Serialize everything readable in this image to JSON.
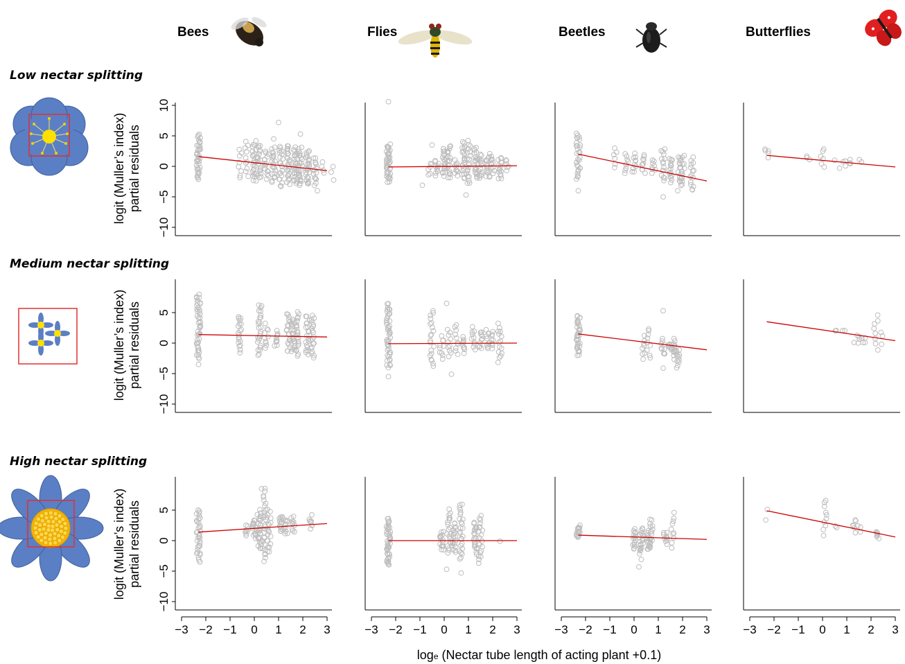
{
  "figure": {
    "columns": [
      {
        "label": "Bees",
        "icon": "bee-icon"
      },
      {
        "label": "Flies",
        "icon": "fly-icon"
      },
      {
        "label": "Beetles",
        "icon": "beetle-icon"
      },
      {
        "label": "Butterflies",
        "icon": "butterfly-icon"
      }
    ],
    "rows": [
      {
        "label": "Low nectar splitting",
        "icon": "low-splitting-flower-icon"
      },
      {
        "label": "Medium nectar splitting",
        "icon": "medium-splitting-flower-icon"
      },
      {
        "label": "High nectar splitting",
        "icon": "high-splitting-flower-icon"
      }
    ],
    "ylabel_line1": "logit (Muller’s index)",
    "ylabel_line2": "partial residuals",
    "xlabel_prefix": "log",
    "xlabel_sub": "e",
    "xlabel_rest": " (Nectar tube length of acting plant +0.1)",
    "x_tick_labels": [
      "−3",
      "−2",
      "−1",
      "0",
      "1",
      "2",
      "3"
    ],
    "y_tick_labels": [
      "−10",
      "−5",
      "0",
      "5",
      "10"
    ],
    "colors": {
      "points": "#bdbdbd",
      "fit_line": "#cc0000",
      "flower_petal": "#5b7fc4",
      "flower_center": "#ffe000",
      "box": "#e03030"
    }
  },
  "chart_data": {
    "type": "scatter",
    "xlim": [
      -3,
      3
    ],
    "ylim": [
      -10,
      10
    ],
    "x_ticks": [
      -3,
      -2,
      -1,
      0,
      1,
      2,
      3
    ],
    "y_ticks": [
      -10,
      -5,
      0,
      5,
      10
    ],
    "grid": false,
    "panels": [
      {
        "row": "Low nectar splitting",
        "col": "Bees",
        "fit": [
          [
            -2.3,
            1.6
          ],
          [
            3.0,
            -0.7
          ]
        ],
        "clusters": [
          [
            -2.3,
            -2,
            5,
            40
          ],
          [
            -0.6,
            -2,
            3,
            8
          ],
          [
            -0.3,
            -1.5,
            4,
            10
          ],
          [
            0,
            -2.5,
            4,
            25
          ],
          [
            0.2,
            -2,
            3.5,
            20
          ],
          [
            0.5,
            -2,
            2.5,
            15
          ],
          [
            0.8,
            -2.5,
            3,
            20
          ],
          [
            1.1,
            -3,
            3.5,
            20
          ],
          [
            1.4,
            -3,
            3.5,
            25
          ],
          [
            1.7,
            -3,
            3,
            25
          ],
          [
            1.9,
            -3,
            3,
            25
          ],
          [
            2.2,
            -3,
            2.5,
            25
          ],
          [
            2.5,
            -3,
            1.5,
            15
          ],
          [
            2.8,
            -1,
            0.5,
            4
          ],
          [
            3.2,
            -2,
            0,
            3
          ]
        ],
        "outliers": [
          [
            1.0,
            7.2
          ],
          [
            1.9,
            5.3
          ],
          [
            0.8,
            4.5
          ],
          [
            2.6,
            -4
          ],
          [
            1.1,
            -3.3
          ]
        ]
      },
      {
        "row": "Low nectar splitting",
        "col": "Flies",
        "fit": [
          [
            -2.3,
            -0.1
          ],
          [
            3.0,
            0.1
          ]
        ],
        "clusters": [
          [
            -2.3,
            -2.5,
            3.5,
            40
          ],
          [
            -0.6,
            -1.5,
            0.5,
            6
          ],
          [
            -0.3,
            -1.5,
            1,
            10
          ],
          [
            0,
            -1.5,
            3,
            20
          ],
          [
            0.2,
            -2,
            3.5,
            20
          ],
          [
            0.5,
            -1.5,
            1,
            10
          ],
          [
            0.8,
            -2,
            4,
            20
          ],
          [
            1.0,
            -3,
            4,
            20
          ],
          [
            1.3,
            -2,
            3,
            20
          ],
          [
            1.5,
            -2,
            2,
            15
          ],
          [
            1.8,
            -2,
            2,
            15
          ],
          [
            2.0,
            -1,
            1.5,
            10
          ],
          [
            2.3,
            -2,
            1.5,
            15
          ],
          [
            2.6,
            -0.5,
            1,
            6
          ]
        ],
        "outliers": [
          [
            -2.3,
            10.6
          ],
          [
            -0.9,
            -3.1
          ],
          [
            0.9,
            -4.7
          ],
          [
            -0.5,
            3.5
          ]
        ]
      },
      {
        "row": "Low nectar splitting",
        "col": "Beetles",
        "fit": [
          [
            -2.3,
            2.0
          ],
          [
            3.0,
            -2.4
          ]
        ],
        "clusters": [
          [
            -2.3,
            -2,
            5.5,
            30
          ],
          [
            -0.8,
            0,
            3,
            6
          ],
          [
            -0.3,
            -1,
            2,
            8
          ],
          [
            0,
            -1,
            2,
            10
          ],
          [
            0.4,
            -1,
            2,
            10
          ],
          [
            0.8,
            -1,
            1,
            8
          ],
          [
            1.2,
            -2.5,
            3,
            15
          ],
          [
            1.5,
            -2.5,
            1.5,
            15
          ],
          [
            1.9,
            -3,
            1.5,
            15
          ],
          [
            2.0,
            -3,
            2,
            12
          ],
          [
            2.4,
            -4,
            1.5,
            15
          ]
        ],
        "outliers": [
          [
            -2.3,
            -4
          ],
          [
            1.2,
            -5
          ],
          [
            1.8,
            -4
          ]
        ]
      },
      {
        "row": "Low nectar splitting",
        "col": "Butterflies",
        "fit": [
          [
            -2.3,
            1.8
          ],
          [
            3.0,
            -0.1
          ]
        ],
        "clusters": [
          [
            -2.3,
            1.5,
            3,
            5
          ],
          [
            -0.6,
            1,
            1.7,
            3
          ],
          [
            0,
            0,
            3,
            6
          ],
          [
            0.9,
            0,
            1,
            3
          ],
          [
            1.2,
            0.3,
            1.3,
            3
          ],
          [
            1.6,
            0.5,
            1,
            2
          ]
        ],
        "outliers": [
          [
            0.7,
            -0.3
          ],
          [
            0.5,
            1.0
          ]
        ]
      },
      {
        "row": "Medium nectar splitting",
        "col": "Bees",
        "fit": [
          [
            -2.3,
            1.4
          ],
          [
            3.0,
            1.0
          ]
        ],
        "clusters": [
          [
            -2.3,
            -2.5,
            8,
            45
          ],
          [
            -0.6,
            -1.5,
            4.5,
            20
          ],
          [
            0.2,
            -2,
            6,
            25
          ],
          [
            0.5,
            -1,
            3,
            10
          ],
          [
            0.9,
            -0.5,
            2,
            10
          ],
          [
            1.4,
            -1.5,
            5,
            20
          ],
          [
            1.6,
            -1.5,
            4,
            20
          ],
          [
            1.8,
            -2,
            5,
            20
          ],
          [
            2.2,
            -2,
            4.5,
            20
          ],
          [
            2.4,
            -2.5,
            4.5,
            20
          ]
        ],
        "outliers": [
          [
            -2.3,
            -3.5
          ],
          [
            0.3,
            6.1
          ]
        ]
      },
      {
        "row": "Medium nectar splitting",
        "col": "Flies",
        "fit": [
          [
            -2.3,
            -0.1
          ],
          [
            3.0,
            0.0
          ]
        ],
        "clusters": [
          [
            -2.3,
            -4,
            6.5,
            45
          ],
          [
            -0.5,
            -4,
            5.5,
            20
          ],
          [
            -0.1,
            -2.5,
            1,
            10
          ],
          [
            0.2,
            -2,
            2,
            10
          ],
          [
            0.5,
            -2,
            3,
            10
          ],
          [
            0.8,
            -1.5,
            1,
            10
          ],
          [
            1.2,
            -1,
            2.5,
            10
          ],
          [
            1.5,
            -1,
            2,
            10
          ],
          [
            1.8,
            -1,
            2,
            10
          ],
          [
            2.0,
            -1,
            2,
            8
          ],
          [
            2.3,
            -3,
            3,
            15
          ]
        ],
        "outliers": [
          [
            -2.3,
            -5.5
          ],
          [
            0.1,
            6.5
          ],
          [
            0.3,
            -5.1
          ]
        ]
      },
      {
        "row": "Medium nectar splitting",
        "col": "Beetles",
        "fit": [
          [
            -2.3,
            1.5
          ],
          [
            3.0,
            -1.1
          ]
        ],
        "clusters": [
          [
            -2.3,
            -2,
            4.5,
            35
          ],
          [
            0.4,
            -2.5,
            1,
            8
          ],
          [
            0.6,
            -2.5,
            2,
            8
          ],
          [
            1.2,
            -2,
            0.5,
            10
          ],
          [
            1.5,
            -1,
            0,
            8
          ],
          [
            1.7,
            -2.5,
            0.5,
            12
          ],
          [
            1.8,
            -4,
            -1,
            10
          ]
        ],
        "outliers": [
          [
            1.2,
            5.3
          ],
          [
            0.6,
            2.3
          ],
          [
            1.2,
            -4.1
          ]
        ]
      },
      {
        "row": "Medium nectar splitting",
        "col": "Butterflies",
        "fit": [
          [
            -2.3,
            3.5
          ],
          [
            3.0,
            0.4
          ]
        ],
        "clusters": [
          [
            0.6,
            2,
            2,
            2
          ],
          [
            0.9,
            2,
            2,
            2
          ],
          [
            1.5,
            0,
            1.5,
            4
          ],
          [
            1.7,
            0,
            1,
            4
          ],
          [
            2.2,
            -1,
            4.5,
            8
          ],
          [
            2.4,
            0,
            2,
            3
          ]
        ],
        "outliers": [
          [
            1.3,
            0.1
          ]
        ]
      },
      {
        "row": "High nectar splitting",
        "col": "Bees",
        "fit": [
          [
            -2.3,
            1.4
          ],
          [
            3.0,
            2.8
          ]
        ],
        "clusters": [
          [
            -2.3,
            -3.5,
            5,
            35
          ],
          [
            -0.3,
            1,
            2.5,
            8
          ],
          [
            0,
            0.5,
            3.5,
            15
          ],
          [
            0.2,
            -1.5,
            5,
            25
          ],
          [
            0.4,
            -3,
            8.5,
            25
          ],
          [
            0.6,
            -2,
            5,
            20
          ],
          [
            1.1,
            1.5,
            4,
            15
          ],
          [
            1.3,
            1,
            3.5,
            10
          ],
          [
            1.6,
            1.5,
            4,
            10
          ],
          [
            2.3,
            2,
            4,
            8
          ]
        ],
        "outliers": [
          [
            0.4,
            -3.4
          ],
          [
            0.3,
            8.5
          ]
        ]
      },
      {
        "row": "High nectar splitting",
        "col": "Flies",
        "fit": [
          [
            -2.3,
            0.0
          ],
          [
            3.0,
            0.0
          ]
        ],
        "clusters": [
          [
            -2.3,
            -4,
            3.5,
            45
          ],
          [
            -0.1,
            -1.5,
            1.5,
            15
          ],
          [
            0.2,
            -2,
            5,
            20
          ],
          [
            0.4,
            -2,
            3,
            20
          ],
          [
            0.7,
            -3,
            6,
            25
          ],
          [
            1.3,
            -2,
            3,
            20
          ],
          [
            1.5,
            -3.5,
            4,
            20
          ]
        ],
        "outliers": [
          [
            0.7,
            -5.3
          ],
          [
            0.1,
            -4.7
          ],
          [
            2.3,
            -0.1
          ]
        ]
      },
      {
        "row": "High nectar splitting",
        "col": "Beetles",
        "fit": [
          [
            -2.3,
            0.9
          ],
          [
            3.0,
            0.2
          ]
        ],
        "clusters": [
          [
            -2.3,
            0.5,
            2.5,
            15
          ],
          [
            0,
            -1.5,
            2,
            15
          ],
          [
            0.3,
            -2,
            2,
            20
          ],
          [
            0.6,
            -1.5,
            1.5,
            15
          ],
          [
            0.7,
            -1,
            3.5,
            15
          ],
          [
            1.3,
            -0.5,
            1.5,
            10
          ],
          [
            1.6,
            -1,
            4.5,
            10
          ]
        ],
        "outliers": [
          [
            0.2,
            -4.3
          ],
          [
            0.3,
            -3.1
          ]
        ]
      },
      {
        "row": "High nectar splitting",
        "col": "Butterflies",
        "fit": [
          [
            -2.3,
            4.9
          ],
          [
            3.0,
            0.6
          ]
        ],
        "clusters": [
          [
            -2.3,
            3.3,
            5.2,
            2
          ],
          [
            0.1,
            1,
            6.7,
            10
          ],
          [
            0.6,
            2,
            2.5,
            2
          ],
          [
            1.3,
            1.5,
            3.5,
            6
          ],
          [
            1.5,
            1.5,
            2.5,
            3
          ],
          [
            2.2,
            0.5,
            1.5,
            4
          ],
          [
            2.3,
            0.5,
            1,
            3
          ]
        ],
        "outliers": []
      }
    ]
  }
}
